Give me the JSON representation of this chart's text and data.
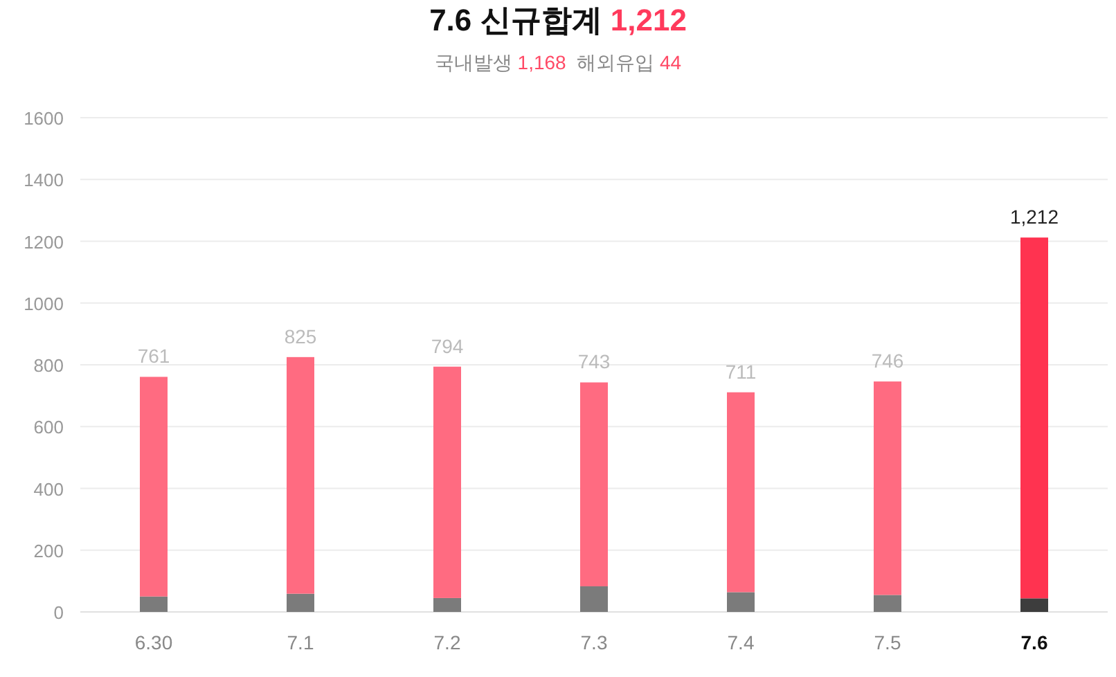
{
  "chart_data": {
    "type": "bar",
    "title": "7.6 신규합계 1,212",
    "subtitle": "국내발생 1,168  해외유입 44",
    "categories": [
      "6.30",
      "7.1",
      "7.2",
      "7.3",
      "7.4",
      "7.5",
      "7.6"
    ],
    "stacked": true,
    "series": [
      {
        "colors": [
          "#7b7b7b",
          "#7b7b7b",
          "#7b7b7b",
          "#7b7b7b",
          "#7b7b7b",
          "#7b7b7b",
          "#3d3d3d"
        ],
        "values": [
          50,
          59,
          45,
          83,
          64,
          55,
          44
        ]
      },
      {
        "colors": [
          "#ff6b81",
          "#ff6b81",
          "#ff6b81",
          "#ff6b81",
          "#ff6b81",
          "#ff6b81",
          "#ff3350"
        ],
        "values": [
          711,
          766,
          749,
          660,
          647,
          691,
          1168
        ]
      }
    ],
    "totals": [
      "761",
      "825",
      "794",
      "743",
      "711",
      "746",
      "1,212"
    ],
    "ylim": [
      0,
      1600
    ],
    "yticks": [
      0,
      200,
      400,
      600,
      800,
      1000,
      1200,
      1400,
      1600
    ],
    "grid": "y"
  }
}
